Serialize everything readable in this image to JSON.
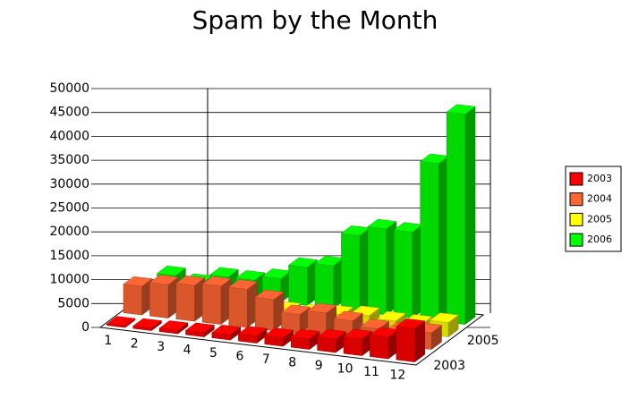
{
  "chart_data": {
    "type": "bar3d",
    "title": "Spam by the Month",
    "categories": [
      "1",
      "2",
      "3",
      "4",
      "5",
      "6",
      "7",
      "8",
      "9",
      "10",
      "11",
      "12"
    ],
    "depth_labels": [
      "2003",
      "2005"
    ],
    "series": [
      {
        "name": "2003",
        "color": "#ff0000",
        "values": [
          300,
          500,
          700,
          900,
          1100,
          1500,
          1800,
          2200,
          2800,
          3500,
          4500,
          7000
        ]
      },
      {
        "name": "2004",
        "color": "#ff6633",
        "values": [
          6000,
          7000,
          7500,
          8000,
          8000,
          6500,
          4000,
          5000,
          4000,
          3000,
          3000,
          3500
        ]
      },
      {
        "name": "2005",
        "color": "#ffff00",
        "values": [
          2000,
          1500,
          1500,
          1500,
          1500,
          1500,
          1500,
          2000,
          2500,
          2000,
          2000,
          3000
        ]
      },
      {
        "name": "2006",
        "color": "#00ff00",
        "values": [
          3000,
          2000,
          4000,
          4000,
          5000,
          8000,
          9000,
          16000,
          18000,
          18000,
          33000,
          44000
        ]
      }
    ],
    "ylim": [
      0,
      50000
    ],
    "yticks": [
      0,
      5000,
      10000,
      15000,
      20000,
      25000,
      30000,
      35000,
      40000,
      45000,
      50000
    ],
    "grid": true
  }
}
